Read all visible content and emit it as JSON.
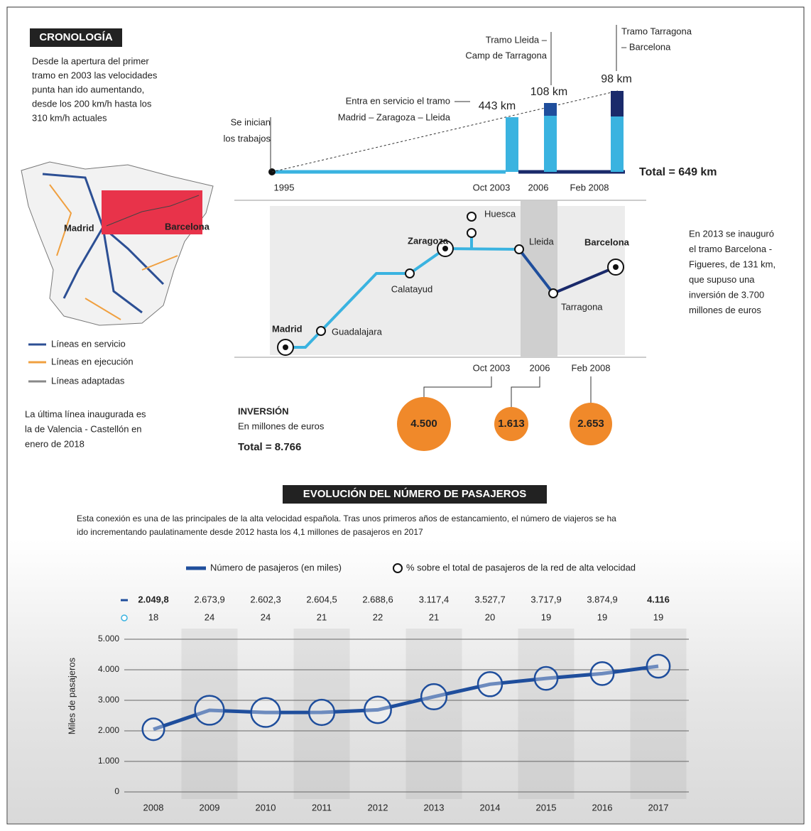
{
  "cronologia": {
    "title": "CRONOLOGÍA",
    "text": [
      "Desde la apertura del primer",
      "tramo en 2003 las velocidades",
      "punta han ido aumentando,",
      "desde los 200 km/h hasta los",
      "310 km/h actuales"
    ]
  },
  "map": {
    "labels": [
      "Madrid",
      "Barcelona"
    ],
    "legend": [
      "Líneas en servicio",
      "Líneas en ejecución",
      "Líneas adaptadas"
    ],
    "note": [
      "La última línea inaugurada es",
      "la de Valencia - Castellón en",
      "enero de 2018"
    ]
  },
  "timeline": {
    "start": [
      "Se inician",
      "los trabajos"
    ],
    "dates": [
      "1995",
      "Oct 2003",
      "2006",
      "Feb 2008"
    ],
    "sections": [
      {
        "label": [
          "Entra en servicio el tramo",
          "Madrid – Zaragoza – Lleida"
        ],
        "km": "443 km"
      },
      {
        "label": [
          "Tramo Lleida –",
          "Camp de Tarragona"
        ],
        "km": "108 km"
      },
      {
        "label": [
          "Tramo Tarragona",
          "– Barcelona"
        ],
        "km": "98 km"
      }
    ],
    "total": "Total = 649 km"
  },
  "route": {
    "stations": [
      "Madrid",
      "Guadalajara",
      "Calatayud",
      "Zaragoza",
      "Huesca",
      "Lleida",
      "Tarragona",
      "Barcelona"
    ],
    "dates": [
      "Oct 2003",
      "2006",
      "Feb 2008"
    ],
    "note": [
      "En 2013 se inauguró",
      "el tramo Barcelona -",
      "Figueres, de 131 km,",
      "que supuso una",
      "inversión de 3.700",
      "millones de euros"
    ]
  },
  "inversion": {
    "title": "INVERSIÓN",
    "subtitle": "En millones de euros",
    "total": "Total = 8.766",
    "amounts": [
      "4.500",
      "1.613",
      "2.653"
    ]
  },
  "chart_data": {
    "type": "line",
    "title": "EVOLUCIÓN DEL NÚMERO DE PASAJEROS",
    "subtitle": [
      "Esta conexión es una de las principales de la alta velocidad española. Tras unos primeros años de estancamiento, el número de viajeros se ha",
      "ido incrementando paulatinamente desde 2012 hasta los 4,1 millones de pasajeros en 2017"
    ],
    "y_label": "Miles de pasajeros",
    "categories": [
      "2008",
      "2009",
      "2010",
      "2011",
      "2012",
      "2013",
      "2014",
      "2015",
      "2016",
      "2017"
    ],
    "series": [
      {
        "name": "Número de pasajeros (en miles)",
        "color": "#1f4e9c",
        "values": [
          2049.8,
          2673.9,
          2602.3,
          2604.5,
          2688.6,
          3117.4,
          3527.7,
          3717.9,
          3874.9,
          4116
        ],
        "value_labels": [
          "2.049,8",
          "2.673,9",
          "2.602,3",
          "2.604,5",
          "2.688,6",
          "3.117,4",
          "3.527,7",
          "3.717,9",
          "3.874,9",
          "4.116"
        ]
      },
      {
        "name": "% sobre el total de pasajeros de la red de alta velocidad",
        "color": "#1f4e9c",
        "values": [
          18,
          24,
          24,
          21,
          22,
          21,
          20,
          19,
          19,
          19
        ]
      }
    ],
    "ylim": [
      0,
      5000
    ],
    "yticks": [
      0,
      {
        "value": 1000,
        "label": "1.000"
      },
      {
        "value": 2000,
        "label": "2.000"
      },
      {
        "value": 3000,
        "label": "3.000"
      },
      {
        "value": 4000,
        "label": "4.000"
      },
      {
        "value": 5000,
        "label": "5.000"
      }
    ],
    "grid": true
  }
}
